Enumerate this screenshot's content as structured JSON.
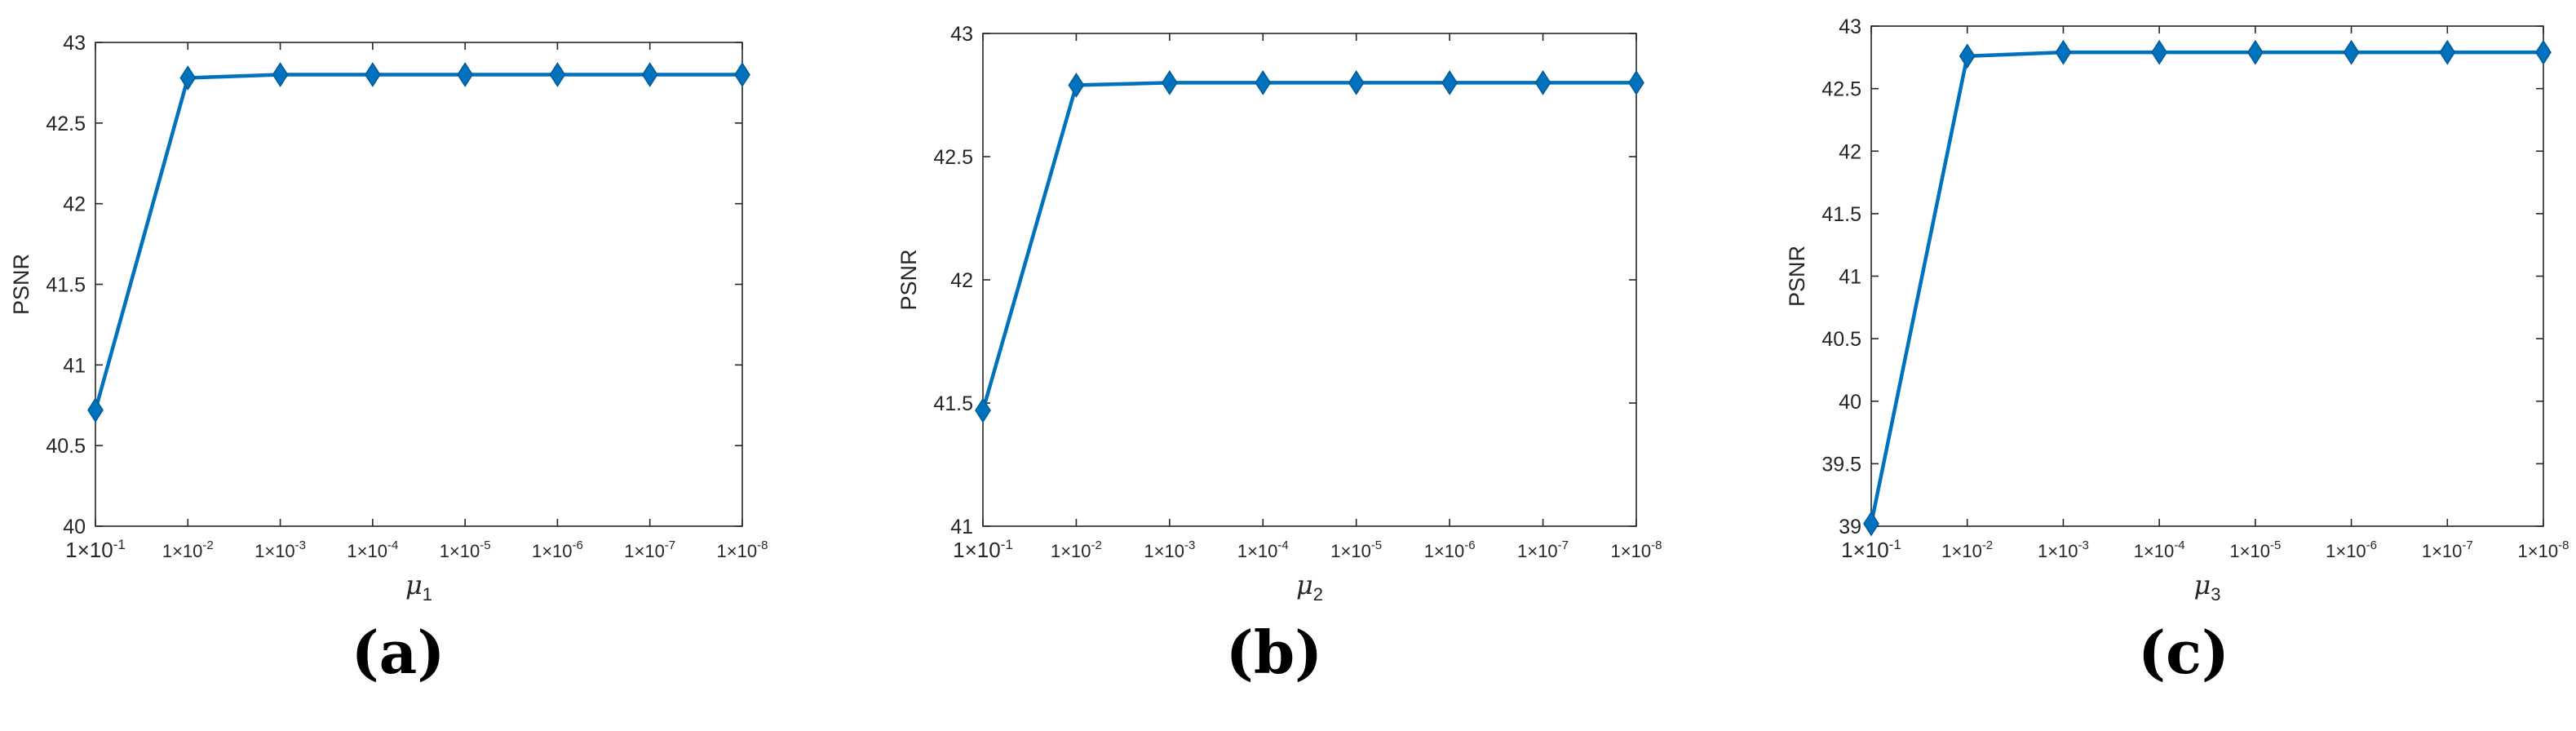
{
  "colors": {
    "series": "#0072BD",
    "marker_edge": "#005A96",
    "axis": "#262626"
  },
  "chart_data": [
    {
      "type": "line",
      "panel_label": "(a)",
      "xlabel_symbol": "μ",
      "xlabel_subscript": "1",
      "ylabel": "PSNR",
      "categories": [
        "1×10-1",
        "1×10-2",
        "1×10-3",
        "1×10-4",
        "1×10-5",
        "1×10-6",
        "1×10-7",
        "1×10-8"
      ],
      "category_exponents": [
        "-1",
        "-2",
        "-3",
        "-4",
        "-5",
        "-6",
        "-7",
        "-8"
      ],
      "tick_prefix": "1×10",
      "values": [
        40.72,
        42.78,
        42.8,
        42.8,
        42.8,
        42.8,
        42.8,
        42.8
      ],
      "ylim": [
        40,
        43
      ],
      "yticks": [
        40,
        40.5,
        41,
        41.5,
        42,
        42.5,
        43
      ],
      "ytick_labels": [
        "40",
        "40.5",
        "41",
        "41.5",
        "42",
        "42.5",
        "43"
      ],
      "marker": "diamond",
      "grid": false
    },
    {
      "type": "line",
      "panel_label": "(b)",
      "xlabel_symbol": "μ",
      "xlabel_subscript": "2",
      "ylabel": "PSNR",
      "categories": [
        "1×10-1",
        "1×10-2",
        "1×10-3",
        "1×10-4",
        "1×10-5",
        "1×10-6",
        "1×10-7",
        "1×10-8"
      ],
      "category_exponents": [
        "-1",
        "-2",
        "-3",
        "-4",
        "-5",
        "-6",
        "-7",
        "-8"
      ],
      "tick_prefix": "1×10",
      "values": [
        41.47,
        42.79,
        42.8,
        42.8,
        42.8,
        42.8,
        42.8,
        42.8
      ],
      "ylim": [
        41,
        43
      ],
      "yticks": [
        41,
        41.5,
        42,
        42.5,
        43
      ],
      "ytick_labels": [
        "41",
        "41.5",
        "42",
        "42.5",
        "43"
      ],
      "marker": "diamond",
      "grid": false
    },
    {
      "type": "line",
      "panel_label": "(c)",
      "xlabel_symbol": "μ",
      "xlabel_subscript": "3",
      "ylabel": "PSNR",
      "categories": [
        "1×10-1",
        "1×10-2",
        "1×10-3",
        "1×10-4",
        "1×10-5",
        "1×10-6",
        "1×10-7",
        "1×10-8"
      ],
      "category_exponents": [
        "-1",
        "-2",
        "-3",
        "-4",
        "-5",
        "-6",
        "-7",
        "-8"
      ],
      "tick_prefix": "1×10",
      "values": [
        39.02,
        42.76,
        42.79,
        42.79,
        42.79,
        42.79,
        42.79,
        42.79
      ],
      "ylim": [
        39,
        43
      ],
      "yticks": [
        39,
        39.5,
        40,
        40.5,
        41,
        41.5,
        42,
        42.5,
        43
      ],
      "ytick_labels": [
        "39",
        "39.5",
        "40",
        "40.5",
        "41",
        "41.5",
        "42",
        "42.5",
        "43"
      ],
      "marker": "diamond",
      "grid": false
    }
  ]
}
